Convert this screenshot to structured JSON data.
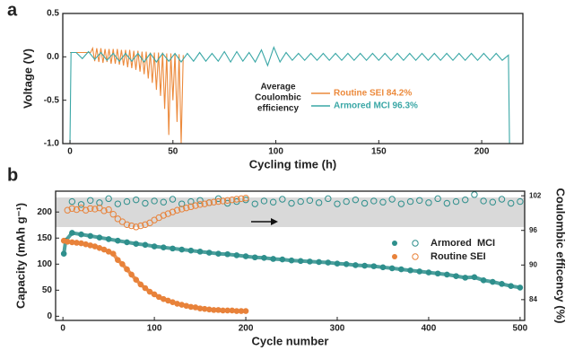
{
  "chart_data": [
    {
      "type": "line",
      "panel_label": "a",
      "xlabel": "Cycling time (h)",
      "ylabel": "Voltage (V)",
      "xlim": [
        -3.5,
        220
      ],
      "xticks": [
        0,
        50,
        100,
        150,
        200
      ],
      "ylim": [
        -1,
        0.5
      ],
      "yticks": [
        {
          "value": -1,
          "label": "-1.0"
        },
        -0.5,
        {
          "value": 0,
          "label": "0.0"
        },
        0.5
      ],
      "grid": false,
      "annotation": [
        "Average",
        "Coulombic",
        "efficiency"
      ],
      "series": [
        {
          "name": "Routine SEI 84.2%",
          "color": "#ec8a3c",
          "x": [
            0,
            10,
            11,
            12,
            13,
            14,
            15,
            16,
            17,
            18,
            19,
            20,
            21,
            22,
            23,
            24,
            25,
            26,
            27,
            28,
            29,
            30,
            31,
            32,
            33,
            34,
            35,
            36,
            37,
            38,
            39,
            40,
            41,
            42,
            43,
            44,
            45,
            46,
            47,
            48,
            49,
            50,
            51,
            52,
            53,
            54,
            55
          ],
          "values": [
            0.05,
            0.05,
            0.1,
            -0.05,
            0.1,
            -0.06,
            0.1,
            -0.07,
            0.09,
            -0.06,
            0.09,
            -0.08,
            0.09,
            -0.08,
            0.09,
            -0.09,
            0.08,
            -0.1,
            0.08,
            -0.12,
            0.08,
            -0.13,
            0.07,
            -0.15,
            0.07,
            -0.17,
            0.06,
            -0.2,
            0.06,
            -0.25,
            0.05,
            -0.3,
            0.05,
            -0.38,
            0.05,
            -0.45,
            0.05,
            -0.6,
            0.04,
            -0.9,
            0.04,
            -0.5,
            0.04,
            -0.75,
            0.03,
            -1,
            0.02
          ]
        },
        {
          "name": "Armored MCI 96.3%",
          "color": "#3aa7a6",
          "x": [
            0,
            0.5,
            3,
            6,
            9,
            12,
            15,
            18,
            21,
            24,
            27,
            30,
            33,
            36,
            39,
            42,
            45,
            48,
            51,
            54,
            57,
            60,
            63,
            66,
            69,
            72,
            75,
            78,
            81,
            84,
            87,
            90,
            93,
            96,
            99,
            102,
            105,
            108,
            111,
            114,
            117,
            120,
            123,
            126,
            129,
            132,
            135,
            138,
            141,
            144,
            147,
            150,
            153,
            156,
            159,
            162,
            165,
            168,
            171,
            174,
            177,
            180,
            183,
            186,
            189,
            192,
            195,
            198,
            201,
            204,
            207,
            210,
            213,
            213.5
          ],
          "values": [
            -1,
            0.05,
            0.05,
            -0.02,
            0.06,
            -0.03,
            0.05,
            -0.04,
            0.04,
            -0.05,
            0.04,
            -0.05,
            0.04,
            -0.06,
            0.04,
            -0.06,
            0.04,
            -0.05,
            0.04,
            -0.06,
            0.04,
            -0.05,
            0.05,
            -0.05,
            0.04,
            -0.05,
            0.06,
            -0.06,
            0.06,
            -0.05,
            0.05,
            -0.06,
            0.08,
            -0.1,
            0.11,
            -0.06,
            0.05,
            -0.04,
            0.04,
            -0.04,
            0.04,
            -0.04,
            0.04,
            -0.04,
            0.04,
            -0.04,
            0.04,
            -0.04,
            0.04,
            -0.04,
            0.04,
            -0.04,
            0.04,
            -0.04,
            0.04,
            -0.04,
            0.04,
            -0.04,
            0.04,
            -0.04,
            0.04,
            -0.04,
            0.04,
            -0.04,
            0.04,
            -0.04,
            0.04,
            -0.04,
            0.04,
            -0.04,
            0.04,
            -0.04,
            0.02,
            -1
          ]
        }
      ]
    },
    {
      "type": "scatter",
      "panel_label": "b",
      "xlabel": "Cycle number",
      "ylabel": "Capacity (mAh g⁻¹)",
      "y2label": "Coulombic efficency (%)",
      "xlim": [
        -8,
        505
      ],
      "xticks": [
        0,
        100,
        200,
        300,
        400,
        500
      ],
      "ylim": [
        -8,
        240
      ],
      "yticks": [
        0,
        50,
        100,
        150,
        200
      ],
      "y2lim": [
        80.4,
        102.8
      ],
      "y2ticks": [
        84,
        90,
        96,
        102
      ],
      "grid": false,
      "series": [
        {
          "name": "Armored  MCI",
          "color": "#2e8f8c",
          "marker": "filled",
          "x": [
            1,
            3,
            10,
            20,
            30,
            40,
            50,
            60,
            70,
            80,
            90,
            100,
            110,
            120,
            130,
            140,
            150,
            160,
            170,
            180,
            190,
            200,
            210,
            220,
            230,
            240,
            250,
            260,
            270,
            280,
            290,
            300,
            310,
            320,
            330,
            340,
            350,
            360,
            370,
            380,
            390,
            400,
            410,
            420,
            430,
            440,
            450,
            460,
            470,
            480,
            490,
            500
          ],
          "values": [
            120,
            145,
            160,
            157,
            154,
            151,
            148,
            145,
            142,
            139,
            137,
            134,
            132,
            130,
            128,
            126,
            124,
            122,
            120,
            119,
            117,
            115,
            113,
            112,
            110,
            109,
            107,
            106,
            105,
            104,
            103,
            101,
            100,
            98,
            97,
            96,
            94,
            92,
            90,
            88,
            86,
            84,
            82,
            80,
            77,
            74,
            75,
            69,
            66,
            62,
            58,
            55
          ]
        },
        {
          "name": "Routine SEI",
          "color": "#e8823a",
          "marker": "filled",
          "x": [
            1,
            5,
            10,
            15,
            20,
            25,
            30,
            35,
            40,
            45,
            50,
            55,
            60,
            65,
            70,
            75,
            80,
            85,
            90,
            95,
            100,
            105,
            110,
            115,
            120,
            125,
            130,
            135,
            140,
            145,
            150,
            155,
            160,
            165,
            170,
            175,
            180,
            185,
            190,
            195,
            200
          ],
          "values": [
            145,
            143,
            142,
            141,
            140,
            138,
            136,
            134,
            131,
            128,
            124,
            120,
            108,
            100,
            90,
            80,
            70,
            61,
            54,
            47,
            42,
            37,
            33,
            30,
            27,
            24,
            22,
            20,
            18,
            17,
            15,
            14,
            13,
            12,
            12,
            11,
            11,
            11,
            10,
            10,
            10
          ]
        },
        {
          "color": "#2e8f8c",
          "marker": "open",
          "axis": "y2",
          "x": [
            10,
            20,
            30,
            40,
            50,
            60,
            70,
            80,
            90,
            100,
            110,
            120,
            130,
            140,
            150,
            160,
            170,
            180,
            190,
            200,
            210,
            220,
            230,
            240,
            250,
            260,
            270,
            280,
            290,
            300,
            310,
            320,
            330,
            340,
            350,
            360,
            370,
            380,
            390,
            400,
            410,
            420,
            430,
            440,
            450,
            460,
            470,
            480,
            490,
            500
          ],
          "values": [
            101,
            100.5,
            101.2,
            100.8,
            101.5,
            100.6,
            101,
            101.3,
            100.7,
            101.1,
            100.9,
            101.4,
            100.6,
            101,
            101.2,
            100.8,
            101.5,
            100.7,
            101,
            101.3,
            100.6,
            101.1,
            100.9,
            101.4,
            100.7,
            101,
            101.2,
            100.8,
            101.5,
            100.6,
            101,
            101.3,
            100.7,
            101.1,
            100.9,
            101.4,
            100.6,
            101,
            101.2,
            100.8,
            101.5,
            100.7,
            101,
            101.3,
            102.2,
            101.1,
            100.9,
            101.4,
            100.7,
            101
          ]
        },
        {
          "color": "#e8823a",
          "marker": "open",
          "axis": "y2",
          "x": [
            5,
            10,
            15,
            20,
            25,
            30,
            35,
            40,
            45,
            50,
            55,
            60,
            65,
            70,
            75,
            80,
            85,
            90,
            95,
            100,
            105,
            110,
            115,
            120,
            125,
            130,
            135,
            140,
            145,
            150,
            155,
            160,
            165,
            170,
            175,
            180,
            185,
            190,
            195,
            200
          ],
          "values": [
            99.5,
            99.8,
            99.6,
            99.9,
            99.5,
            99.8,
            99.7,
            99.9,
            99.4,
            99.6,
            98.8,
            98,
            97.5,
            97,
            96.8,
            96.6,
            96.8,
            97,
            97.3,
            97.8,
            98.2,
            98.6,
            98.9,
            99.2,
            99.5,
            99.7,
            99.9,
            100.1,
            100.3,
            100.5,
            100.6,
            100.8,
            100.9,
            101,
            101.1,
            101.2,
            101.3,
            101.4,
            101.5,
            101.6
          ]
        }
      ]
    }
  ]
}
